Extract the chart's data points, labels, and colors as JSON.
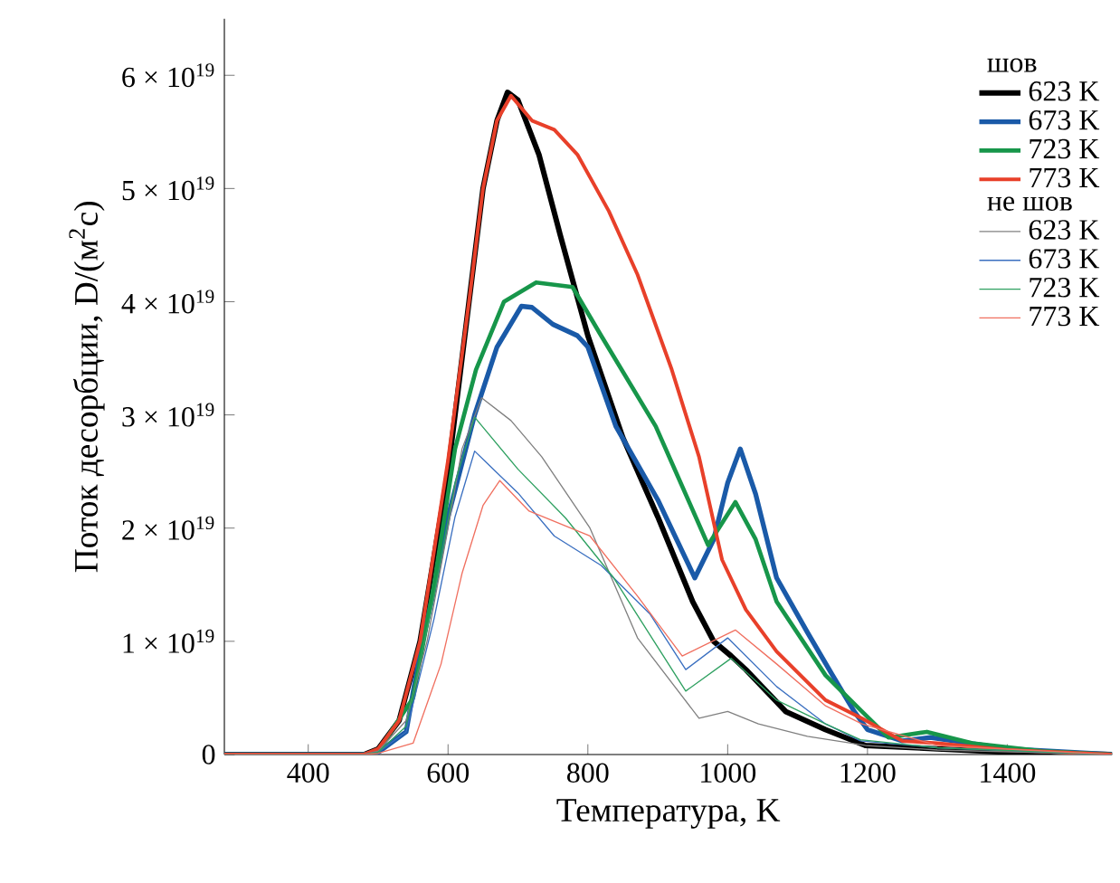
{
  "chart_data": {
    "type": "line",
    "xlabel": "Температура, K",
    "ylabel": "Поток десорбции, D/(м$^{2}$с)",
    "legend_title": "шов",
    "annotations": [
      "не шов"
    ],
    "legend": "top right",
    "marker": "none",
    "line_style": "solid",
    "xlim": [
      280,
      1550
    ],
    "ylim": [
      0,
      6.5e+19
    ],
    "xticks": [
      400,
      600,
      800,
      1000,
      1200,
      1400
    ],
    "yticks": [
      {
        "value": 0,
        "label": "0"
      },
      {
        "value": 1e+19,
        "label": "1 × 10$^{19}$"
      },
      {
        "value": 2e+19,
        "label": "2 × 10$^{19}$"
      },
      {
        "value": 3e+19,
        "label": "3 × 10$^{19}$"
      },
      {
        "value": 4e+19,
        "label": "4 × 10$^{19}$"
      },
      {
        "value": 5e+19,
        "label": "5 × 10$^{19}$"
      },
      {
        "value": 6e+19,
        "label": "6 × 10$^{19}$"
      }
    ],
    "series": [
      {
        "name": "623 K",
        "color": "#000000",
        "x": [
          280,
          480,
          500,
          530,
          560,
          600,
          630,
          650,
          670,
          685,
          700,
          730,
          760,
          800,
          850,
          900,
          950,
          980,
          1005,
          1026,
          1083,
          1140,
          1197,
          1300,
          1400,
          1550
        ],
        "values": [
          0,
          0,
          5e+17,
          3e+18,
          1e+19,
          2.5e+19,
          4e+19,
          5e+19,
          5.6e+19,
          5.85e+19,
          5.78e+19,
          5.3e+19,
          4.6e+19,
          3.7e+19,
          2.8e+19,
          2.1e+19,
          1.35e+19,
          1e+19,
          8.7e+18,
          7.5e+18,
          3.8e+18,
          2.2e+18,
          8e+17,
          5e+17,
          2e+17,
          0
        ]
      },
      {
        "name": "673 K",
        "color": "#1a5aa8",
        "x": [
          280,
          480,
          500,
          540,
          560,
          578,
          600,
          638,
          670,
          705,
          720,
          750,
          785,
          800,
          840,
          900,
          953,
          980,
          1000,
          1018,
          1040,
          1070,
          1114,
          1150,
          1181,
          1200,
          1250,
          1290,
          1400,
          1550
        ],
        "values": [
          0,
          0,
          2e+17,
          2e+18,
          9e+18,
          1.4e+19,
          2.1e+19,
          3e+19,
          3.6e+19,
          3.96e+19,
          3.95e+19,
          3.8e+19,
          3.7e+19,
          3.6e+19,
          2.9e+19,
          2.25e+19,
          1.56e+19,
          1.9e+19,
          2.4e+19,
          2.7e+19,
          2.3e+19,
          1.56e+19,
          1.08e+19,
          7e+18,
          3.8e+18,
          2.2e+18,
          1.2e+18,
          1.5e+18,
          5e+17,
          0
        ]
      },
      {
        "name": "723 K",
        "color": "#17964a",
        "x": [
          280,
          480,
          500,
          550,
          580,
          610,
          640,
          680,
          726,
          778,
          819,
          897,
          972,
          1011,
          1040,
          1070,
          1140,
          1192,
          1230,
          1285,
          1350,
          1450,
          1550
        ],
        "values": [
          0,
          0,
          3e+17,
          5e+18,
          1.5e+19,
          2.7e+19,
          3.4e+19,
          4e+19,
          4.17e+19,
          4.13e+19,
          3.7e+19,
          2.9e+19,
          1.85e+19,
          2.23e+19,
          1.9e+19,
          1.35e+19,
          7e+18,
          3.8e+18,
          1.5e+18,
          2e+18,
          1e+18,
          3e+17,
          0
        ]
      },
      {
        "name": "773 K",
        "color": "#e8402a",
        "x": [
          280,
          480,
          500,
          530,
          560,
          600,
          630,
          650,
          670,
          690,
          720,
          752,
          785,
          830,
          871,
          920,
          959,
          992,
          1026,
          1070,
          1140,
          1192,
          1250,
          1300,
          1400,
          1550
        ],
        "values": [
          0,
          0,
          5e+17,
          3e+18,
          1e+19,
          2.6e+19,
          4e+19,
          5e+19,
          5.6e+19,
          5.82e+19,
          5.6e+19,
          5.52e+19,
          5.3e+19,
          4.8e+19,
          4.24e+19,
          3.4e+19,
          2.63e+19,
          1.72e+19,
          1.28e+19,
          9.1e+18,
          4.8e+18,
          3.2e+18,
          1.2e+18,
          1e+18,
          4e+17,
          0
        ]
      },
      {
        "name": "623 K",
        "color": "#808080",
        "x": [
          280,
          480,
          500,
          540,
          570,
          600,
          620,
          648,
          690,
          734,
          803,
          871,
          959,
          1000,
          1044,
          1114,
          1197,
          1300,
          1550
        ],
        "values": [
          0,
          0,
          3e+17,
          3e+18,
          1e+19,
          2e+19,
          2.7e+19,
          3.15e+19,
          2.95e+19,
          2.63e+19,
          2e+19,
          1.03e+19,
          3.2e+18,
          3.8e+18,
          2.7e+18,
          1.6e+18,
          8e+17,
          4e+17,
          0
        ]
      },
      {
        "name": "673 K",
        "color": "#3a6fc0",
        "x": [
          280,
          480,
          500,
          540,
          580,
          610,
          638,
          700,
          752,
          819,
          889,
          940,
          1000,
          1070,
          1140,
          1190,
          1300,
          1550
        ],
        "values": [
          0,
          0,
          2e+17,
          2e+18,
          1.2e+19,
          2.1e+19,
          2.68e+19,
          2.31e+19,
          1.93e+19,
          1.67e+19,
          1.24e+19,
          7.5e+18,
          1.03e+19,
          6e+18,
          2.7e+18,
          1.2e+18,
          6e+17,
          0
        ]
      },
      {
        "name": "723 K",
        "color": "#2ea060",
        "x": [
          280,
          480,
          500,
          540,
          580,
          610,
          638,
          700,
          768,
          837,
          940,
          1005,
          1070,
          1140,
          1190,
          1300,
          1550
        ],
        "values": [
          0,
          0,
          2e+17,
          2.5e+18,
          1.4e+19,
          2.4e+19,
          2.98e+19,
          2.52e+19,
          2.09e+19,
          1.56e+19,
          5.6e+18,
          8.5e+18,
          4.8e+18,
          2.7e+18,
          1.3e+18,
          6e+17,
          0
        ]
      },
      {
        "name": "773 K",
        "color": "#f07060",
        "x": [
          280,
          480,
          500,
          550,
          590,
          620,
          650,
          674,
          716,
          803,
          871,
          935,
          1011,
          1070,
          1140,
          1192,
          1300,
          1550
        ],
        "values": [
          0,
          0,
          1e+17,
          1e+18,
          8e+18,
          1.6e+19,
          2.2e+19,
          2.42e+19,
          2.15e+19,
          1.93e+19,
          1.4e+19,
          8.7e+18,
          1.1e+19,
          8e+18,
          4.3e+18,
          2.7e+18,
          8e+17,
          0
        ]
      }
    ]
  }
}
